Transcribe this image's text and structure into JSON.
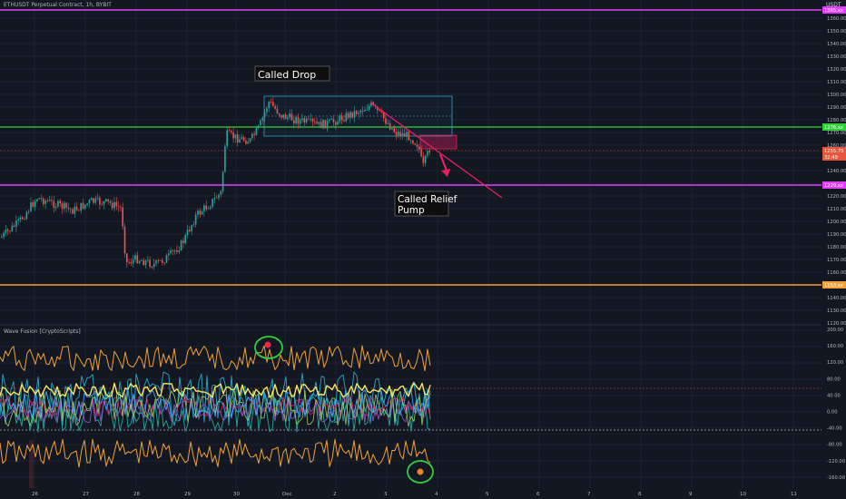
{
  "header": {
    "symbol_line": "ETHUSDT Perpetual Contract, 1h, BYBIT",
    "currency": "USDT"
  },
  "indicator": {
    "title": "Wave Fusion [CryptoScripts]"
  },
  "annotations": {
    "called_drop": "Called Drop",
    "called_relief_line1": "Called Relief",
    "called_relief_line2": "Pump"
  },
  "price_axis": {
    "ticks": [
      "1360.00",
      "1350.00",
      "1340.00",
      "1330.00",
      "1320.00",
      "1310.00",
      "1300.00",
      "1290.00",
      "1280.00",
      "1270.00",
      "1260.00",
      "1250.00",
      "1240.00",
      "1230.00",
      "1220.00",
      "1210.00",
      "1200.00",
      "1190.00",
      "1180.00",
      "1170.00",
      "1160.00",
      "1150.00",
      "1140.00",
      "1130.00",
      "1120.00"
    ],
    "badges": [
      {
        "label": "1365.xx",
        "color": "#e040fb"
      },
      {
        "label": "1276.xx",
        "color": "#2fd13b"
      },
      {
        "label": "1255.75",
        "color": "#e8553c"
      },
      {
        "label": "32:49",
        "color": "#e8553c"
      },
      {
        "label": "1229.xx",
        "color": "#e040fb"
      },
      {
        "label": "1153.xx",
        "color": "#f0a13a"
      }
    ]
  },
  "oscillator_axis": {
    "ticks": [
      "200.00",
      "160.00",
      "120.00",
      "80.00",
      "40.00",
      "0.00",
      "-40.00",
      "-80.00",
      "-120.00",
      "-160.00"
    ]
  },
  "time_axis": {
    "labels": [
      "26",
      "27",
      "28",
      "29",
      "30",
      "Dec",
      "2",
      "3",
      "4",
      "5",
      "6",
      "7",
      "8",
      "9",
      "10",
      "11"
    ]
  },
  "levels": {
    "magenta_top": 1365,
    "green": 1276,
    "magenta_low": 1229,
    "orange": 1153
  },
  "colors": {
    "background": "#131722",
    "up": "#26a69a",
    "down": "#ef5350",
    "magenta": "#e040fb",
    "green": "#2fd13b",
    "orange": "#f0a13a",
    "trendline": "#e91e63"
  }
}
